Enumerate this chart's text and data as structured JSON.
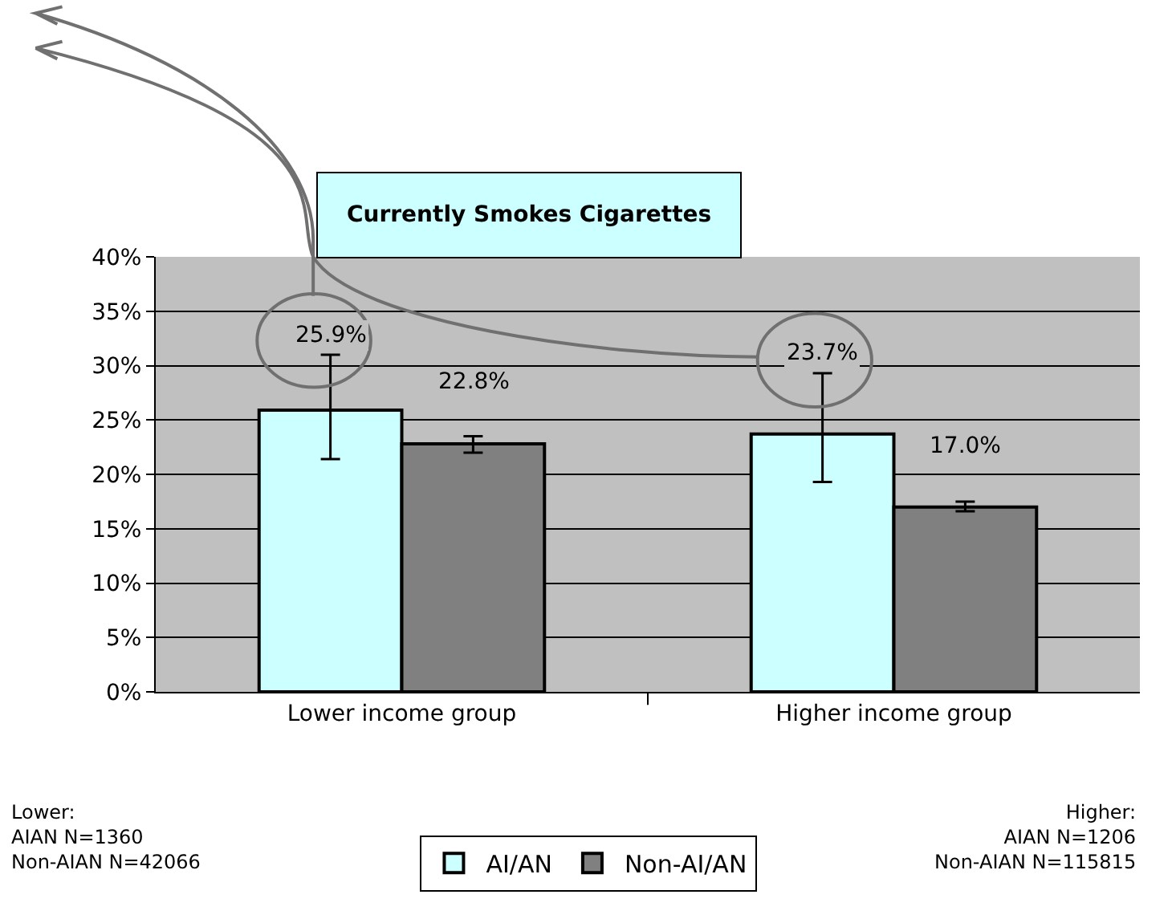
{
  "chart_data": {
    "type": "bar",
    "title": "Currently Smokes Cigarettes",
    "categories": [
      "Lower income group",
      "Higher income group"
    ],
    "series": [
      {
        "name": "AI/AN",
        "color": "#ccffff",
        "values": [
          25.9,
          23.7
        ],
        "errors": [
          [
            21.4,
            31.0
          ],
          [
            19.3,
            29.3
          ]
        ],
        "value_labels": [
          "25.9%",
          "23.7%"
        ]
      },
      {
        "name": "Non-AI/AN",
        "color": "#808080",
        "values": [
          22.8,
          17.0
        ],
        "errors": [
          [
            22.0,
            23.5
          ],
          [
            16.6,
            17.5
          ]
        ],
        "value_labels": [
          "22.8%",
          "17.0%"
        ]
      }
    ],
    "ylim": [
      0,
      40
    ],
    "yticks": [
      {
        "value": 0,
        "label": "0%"
      },
      {
        "value": 5,
        "label": "5%"
      },
      {
        "value": 10,
        "label": "10%"
      },
      {
        "value": 15,
        "label": "15%"
      },
      {
        "value": 20,
        "label": "20%"
      },
      {
        "value": 25,
        "label": "25%"
      },
      {
        "value": 30,
        "label": "30%"
      },
      {
        "value": 35,
        "label": "35%"
      },
      {
        "value": 40,
        "label": "40%"
      }
    ],
    "grid": "y",
    "legend": "bottom",
    "annotations": [
      "Lower:\nAIAN N=1360\nNon-AIAN N=42066",
      "Higher:\nAIAN N=1206\nNon-AIAN N=115815"
    ]
  }
}
